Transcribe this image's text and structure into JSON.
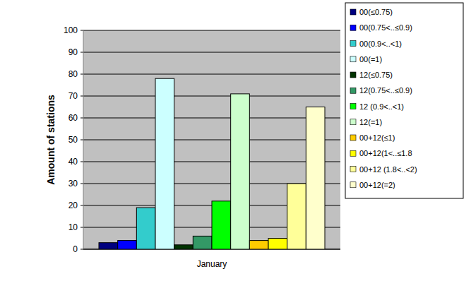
{
  "chart_data": {
    "type": "bar",
    "y_label": "Amount of stations",
    "categories": [
      "January"
    ],
    "series": [
      {
        "name": "00(≤0.75)",
        "color": "#000080",
        "values": [
          3
        ]
      },
      {
        "name": "00(0.75<..≤0.9)",
        "color": "#0000ff",
        "values": [
          4
        ]
      },
      {
        "name": "00(0.9<..<1)",
        "color": "#33cccc",
        "values": [
          19
        ]
      },
      {
        "name": "00(=1)",
        "color": "#ccffff",
        "values": [
          78
        ]
      },
      {
        "name": "12(≤0.75)",
        "color": "#003300",
        "values": [
          2
        ]
      },
      {
        "name": "12(0.75<..≤0.9)",
        "color": "#339966",
        "values": [
          6
        ]
      },
      {
        "name": "12 (0.9<..<1)",
        "color": "#00ff00",
        "values": [
          22
        ]
      },
      {
        "name": "12(=1)",
        "color": "#ccffcc",
        "values": [
          71
        ]
      },
      {
        "name": "00+12(≤1)",
        "color": "#ffcc00",
        "values": [
          4
        ]
      },
      {
        "name": "00+12(1<..≤1.8",
        "color": "#ffff00",
        "values": [
          5
        ]
      },
      {
        "name": "00+12 (1.8<..<2)",
        "color": "#ffff99",
        "values": [
          30
        ]
      },
      {
        "name": "00+12(=2)",
        "color": "#ffffcc",
        "values": [
          65
        ]
      }
    ],
    "ylim": [
      0,
      100
    ],
    "yticks": [
      0,
      10,
      20,
      30,
      40,
      50,
      60,
      70,
      80,
      90,
      100
    ],
    "grid": true,
    "legend": "top-right"
  }
}
